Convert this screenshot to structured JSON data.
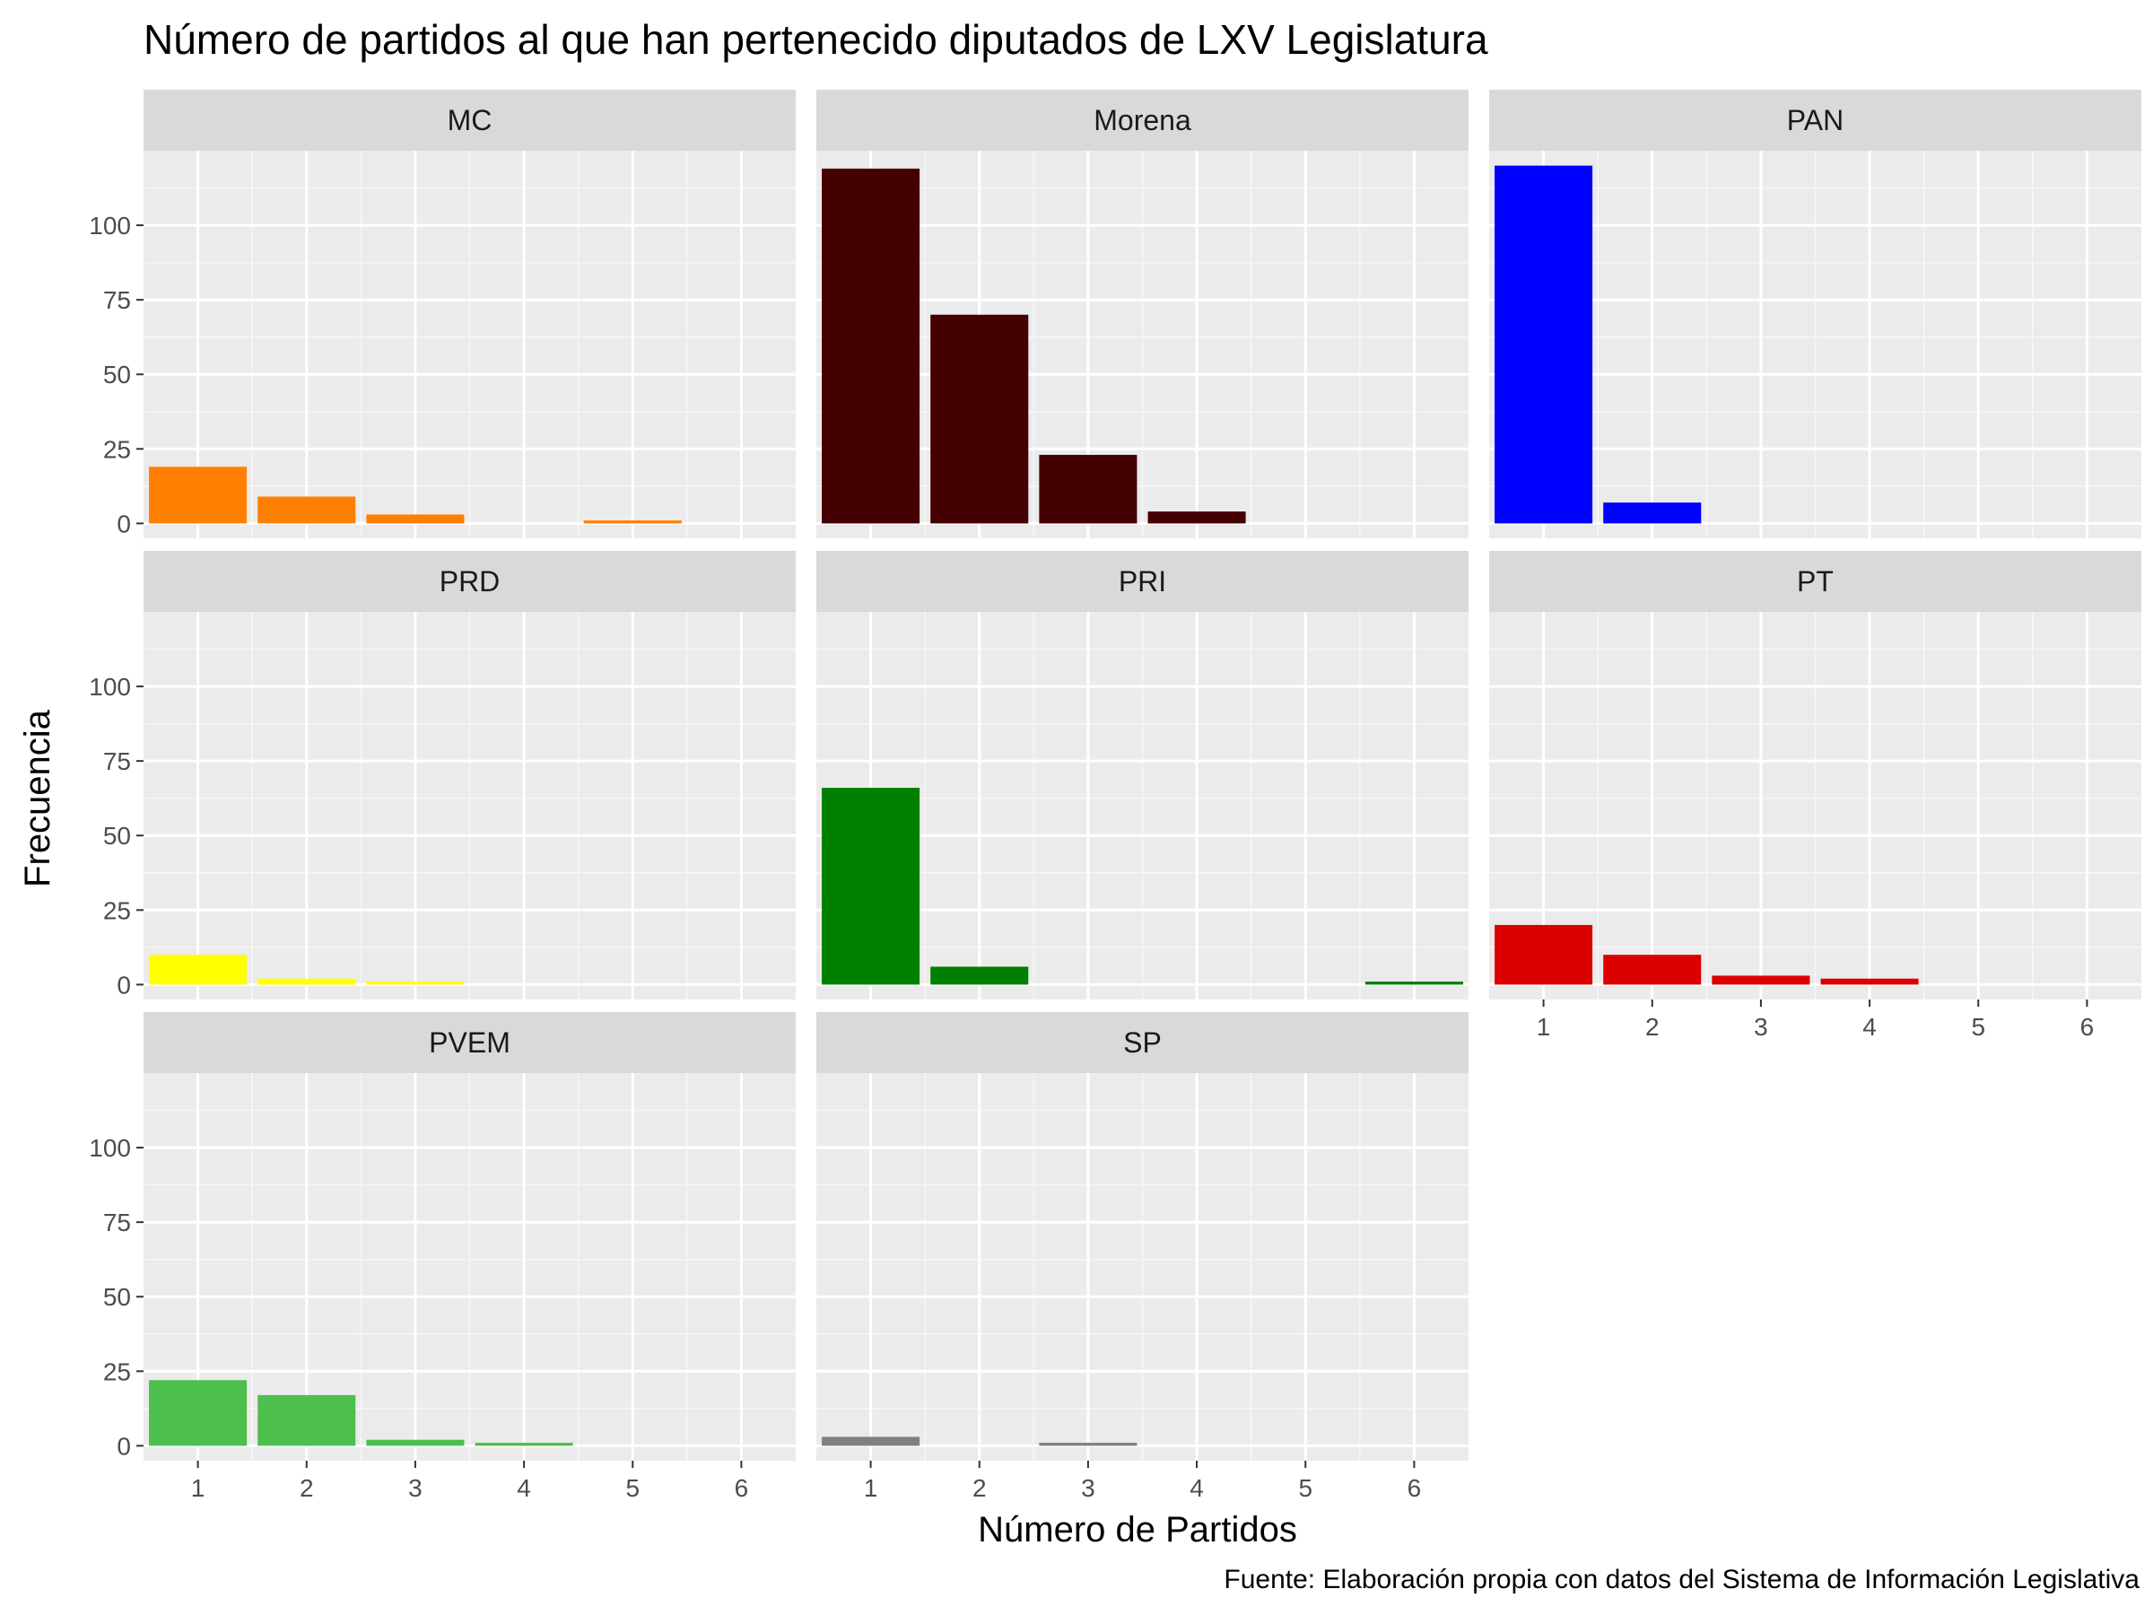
{
  "chart_data": {
    "type": "bar",
    "title": "Número de partidos al que han pertenecido diputados de LXV Legislatura",
    "xlabel": "Número de Partidos",
    "ylabel": "Frecuencia",
    "caption": "Fuente: Elaboración propia con datos del Sistema de Información Legislativa",
    "x_ticks": [
      "1",
      "2",
      "3",
      "4",
      "5",
      "6"
    ],
    "y_ticks": [
      0,
      25,
      50,
      75,
      100
    ],
    "ylim": [
      -5,
      125
    ],
    "xlim": [
      0.5,
      6.5
    ],
    "grid": true,
    "facets": [
      {
        "name": "MC",
        "color": "#FF8000",
        "x": [
          1,
          2,
          3,
          5
        ],
        "values": [
          19,
          9,
          3,
          1
        ]
      },
      {
        "name": "Morena",
        "color": "#440000",
        "x": [
          1,
          2,
          3,
          4
        ],
        "values": [
          119,
          70,
          23,
          4
        ]
      },
      {
        "name": "PAN",
        "color": "#0000FF",
        "x": [
          1,
          2
        ],
        "values": [
          120,
          7
        ]
      },
      {
        "name": "PRD",
        "color": "#FFFF00",
        "x": [
          1,
          2,
          3
        ],
        "values": [
          10,
          2,
          1
        ]
      },
      {
        "name": "PRI",
        "color": "#008000",
        "x": [
          1,
          2,
          6
        ],
        "values": [
          66,
          6,
          1
        ]
      },
      {
        "name": "PT",
        "color": "#DD0000",
        "x": [
          1,
          2,
          3,
          4
        ],
        "values": [
          20,
          10,
          3,
          2
        ]
      },
      {
        "name": "PVEM",
        "color": "#4CBF4C",
        "x": [
          1,
          2,
          3,
          4
        ],
        "values": [
          22,
          17,
          2,
          1
        ]
      },
      {
        "name": "SP",
        "color": "#808080",
        "x": [
          1,
          3
        ],
        "values": [
          3,
          1
        ]
      }
    ]
  }
}
